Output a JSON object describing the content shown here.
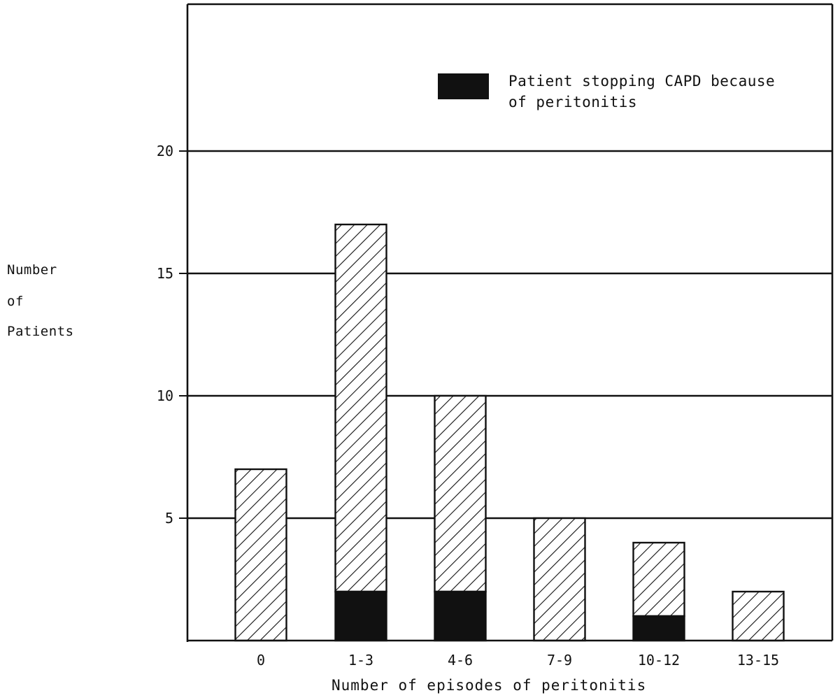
{
  "chart_data": {
    "type": "bar",
    "stacked": true,
    "categories": [
      "0",
      "1-3",
      "4-6",
      "7-9",
      "10-12",
      "13-15"
    ],
    "series": [
      {
        "name": "Patient stopping CAPD because of peritonitis",
        "fill": "solid",
        "values": [
          0,
          2,
          2,
          0,
          1,
          0
        ]
      },
      {
        "fill": "hatched",
        "values": [
          7,
          15,
          8,
          5,
          3,
          2
        ]
      }
    ],
    "totals": [
      7,
      17,
      10,
      5,
      4,
      2
    ],
    "xlabel": "Number of episodes of peritonitis",
    "ylabel_lines": [
      "Number",
      "of",
      "Patients"
    ],
    "yticks": [
      5,
      10,
      15,
      20
    ],
    "ylim": [
      0,
      26
    ],
    "grid": true,
    "legend_placement": "top-right",
    "legend": {
      "label_line1": "Patient stopping CAPD because",
      "label_line2": "of peritonitis"
    },
    "colors": {
      "ink": "#111111",
      "solid_fill": "#111111",
      "background": "#ffffff"
    }
  }
}
